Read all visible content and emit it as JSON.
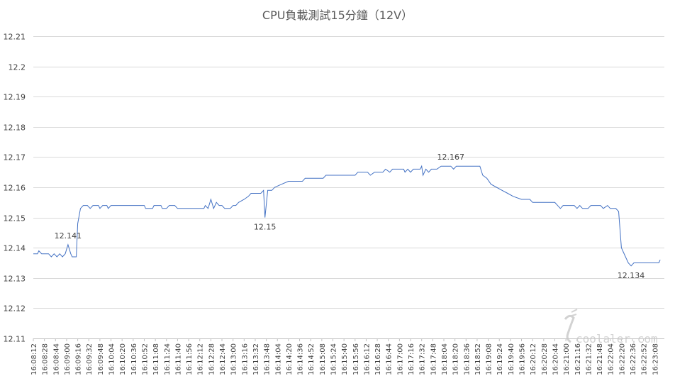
{
  "chart_data": {
    "type": "line",
    "title": "CPU負載測試15分鐘（12V）",
    "xlabel": "",
    "ylabel": "",
    "ylim": [
      12.11,
      12.21
    ],
    "yticks": [
      12.11,
      12.12,
      12.13,
      12.14,
      12.15,
      12.16,
      12.17,
      12.18,
      12.19,
      12.2,
      12.21
    ],
    "ytick_labels": [
      "12.11",
      "12.12",
      "12.13",
      "12.14",
      "12.15",
      "12.16",
      "12.17",
      "12.18",
      "12.19",
      "12.2",
      "12.21"
    ],
    "grid": true,
    "legend": "none",
    "categories": [
      "16:08:12",
      "16:08:28",
      "16:08:44",
      "16:09:00",
      "16:09:16",
      "16:09:32",
      "16:09:48",
      "16:10:04",
      "16:10:20",
      "16:10:36",
      "16:10:52",
      "16:11:08",
      "16:11:24",
      "16:11:40",
      "16:11:56",
      "16:12:12",
      "16:12:28",
      "16:12:44",
      "16:13:00",
      "16:13:16",
      "16:13:32",
      "16:13:48",
      "16:14:04",
      "16:14:20",
      "16:14:36",
      "16:14:52",
      "16:15:08",
      "16:15:24",
      "16:15:40",
      "16:15:56",
      "16:16:12",
      "16:16:28",
      "16:16:44",
      "16:17:00",
      "16:17:16",
      "16:17:32",
      "16:17:48",
      "16:18:04",
      "16:18:20",
      "16:18:36",
      "16:18:52",
      "16:19:08",
      "16:19:24",
      "16:19:40",
      "16:19:56",
      "16:20:12",
      "16:20:28",
      "16:20:44",
      "16:21:00",
      "16:21:16",
      "16:21:32",
      "16:21:48",
      "16:22:04",
      "16:22:20",
      "16:22:36",
      "16:22:52",
      "16:23:08"
    ],
    "series": [
      {
        "color": "#4472c4",
        "points": [
          [
            "16:08:12",
            12.138
          ],
          [
            "16:08:18",
            12.138
          ],
          [
            "16:08:20",
            12.139
          ],
          [
            "16:08:24",
            12.138
          ],
          [
            "16:08:34",
            12.138
          ],
          [
            "16:08:38",
            12.137
          ],
          [
            "16:08:42",
            12.138
          ],
          [
            "16:08:46",
            12.137
          ],
          [
            "16:08:50",
            12.138
          ],
          [
            "16:08:54",
            12.137
          ],
          [
            "16:08:58",
            12.138
          ],
          [
            "16:09:02",
            12.141
          ],
          [
            "16:09:06",
            12.138
          ],
          [
            "16:09:08",
            12.137
          ],
          [
            "16:09:14",
            12.137
          ],
          [
            "16:09:16",
            12.148
          ],
          [
            "16:09:20",
            12.153
          ],
          [
            "16:09:24",
            12.154
          ],
          [
            "16:09:30",
            12.154
          ],
          [
            "16:09:34",
            12.153
          ],
          [
            "16:09:38",
            12.154
          ],
          [
            "16:09:46",
            12.154
          ],
          [
            "16:09:48",
            12.153
          ],
          [
            "16:09:52",
            12.154
          ],
          [
            "16:09:58",
            12.154
          ],
          [
            "16:10:00",
            12.153
          ],
          [
            "16:10:04",
            12.154
          ],
          [
            "16:10:52",
            12.154
          ],
          [
            "16:10:54",
            12.153
          ],
          [
            "16:11:04",
            12.153
          ],
          [
            "16:11:06",
            12.154
          ],
          [
            "16:11:16",
            12.154
          ],
          [
            "16:11:18",
            12.153
          ],
          [
            "16:11:24",
            12.153
          ],
          [
            "16:11:28",
            12.154
          ],
          [
            "16:11:36",
            12.154
          ],
          [
            "16:11:40",
            12.153
          ],
          [
            "16:12:18",
            12.153
          ],
          [
            "16:12:20",
            12.154
          ],
          [
            "16:12:24",
            12.153
          ],
          [
            "16:12:28",
            12.156
          ],
          [
            "16:12:32",
            12.153
          ],
          [
            "16:12:36",
            12.155
          ],
          [
            "16:12:40",
            12.154
          ],
          [
            "16:12:44",
            12.154
          ],
          [
            "16:12:48",
            12.153
          ],
          [
            "16:12:56",
            12.153
          ],
          [
            "16:13:00",
            12.154
          ],
          [
            "16:13:04",
            12.154
          ],
          [
            "16:13:08",
            12.155
          ],
          [
            "16:13:16",
            12.156
          ],
          [
            "16:13:22",
            12.157
          ],
          [
            "16:13:26",
            12.158
          ],
          [
            "16:13:40",
            12.158
          ],
          [
            "16:13:44",
            12.159
          ],
          [
            "16:13:46",
            12.15
          ],
          [
            "16:13:50",
            12.159
          ],
          [
            "16:13:56",
            12.159
          ],
          [
            "16:14:00",
            12.16
          ],
          [
            "16:14:10",
            12.161
          ],
          [
            "16:14:20",
            12.162
          ],
          [
            "16:14:40",
            12.162
          ],
          [
            "16:14:44",
            12.163
          ],
          [
            "16:15:10",
            12.163
          ],
          [
            "16:15:14",
            12.164
          ],
          [
            "16:15:56",
            12.164
          ],
          [
            "16:16:00",
            12.165
          ],
          [
            "16:16:14",
            12.165
          ],
          [
            "16:16:18",
            12.164
          ],
          [
            "16:16:24",
            12.165
          ],
          [
            "16:16:36",
            12.165
          ],
          [
            "16:16:40",
            12.166
          ],
          [
            "16:16:46",
            12.165
          ],
          [
            "16:16:50",
            12.166
          ],
          [
            "16:17:06",
            12.166
          ],
          [
            "16:17:08",
            12.165
          ],
          [
            "16:17:12",
            12.166
          ],
          [
            "16:17:16",
            12.165
          ],
          [
            "16:17:20",
            12.166
          ],
          [
            "16:17:30",
            12.166
          ],
          [
            "16:17:32",
            12.167
          ],
          [
            "16:17:34",
            12.164
          ],
          [
            "16:17:38",
            12.166
          ],
          [
            "16:17:42",
            12.165
          ],
          [
            "16:17:46",
            12.166
          ],
          [
            "16:17:54",
            12.166
          ],
          [
            "16:18:00",
            12.167
          ],
          [
            "16:18:14",
            12.167
          ],
          [
            "16:18:18",
            12.166
          ],
          [
            "16:18:22",
            12.167
          ],
          [
            "16:18:56",
            12.167
          ],
          [
            "16:19:00",
            12.164
          ],
          [
            "16:19:06",
            12.163
          ],
          [
            "16:19:12",
            12.161
          ],
          [
            "16:19:20",
            12.16
          ],
          [
            "16:19:28",
            12.159
          ],
          [
            "16:19:36",
            12.158
          ],
          [
            "16:19:44",
            12.157
          ],
          [
            "16:19:56",
            12.156
          ],
          [
            "16:20:08",
            12.156
          ],
          [
            "16:20:12",
            12.155
          ],
          [
            "16:20:44",
            12.155
          ],
          [
            "16:20:48",
            12.154
          ],
          [
            "16:20:52",
            12.153
          ],
          [
            "16:20:56",
            12.154
          ],
          [
            "16:21:12",
            12.154
          ],
          [
            "16:21:16",
            12.153
          ],
          [
            "16:21:20",
            12.154
          ],
          [
            "16:21:24",
            12.153
          ],
          [
            "16:21:32",
            12.153
          ],
          [
            "16:21:36",
            12.154
          ],
          [
            "16:21:50",
            12.154
          ],
          [
            "16:21:54",
            12.153
          ],
          [
            "16:22:00",
            12.154
          ],
          [
            "16:22:04",
            12.153
          ],
          [
            "16:22:12",
            12.153
          ],
          [
            "16:22:16",
            12.152
          ],
          [
            "16:22:20",
            12.14
          ],
          [
            "16:22:26",
            12.137
          ],
          [
            "16:22:30",
            12.135
          ],
          [
            "16:22:34",
            12.134
          ],
          [
            "16:22:38",
            12.135
          ],
          [
            "16:23:14",
            12.135
          ],
          [
            "16:23:16",
            12.136
          ]
        ]
      }
    ],
    "data_labels": [
      {
        "x": "16:09:02",
        "y": 12.141,
        "text": "12.141",
        "position": "above"
      },
      {
        "x": "16:13:46",
        "y": 12.15,
        "text": "12.15",
        "position": "below"
      },
      {
        "x": "16:18:14",
        "y": 12.167,
        "text": "12.167",
        "position": "above"
      },
      {
        "x": "16:22:34",
        "y": 12.134,
        "text": "12.134",
        "position": "below"
      }
    ]
  },
  "watermark": {
    "text": "coolaler.com",
    "icon": "coolaler-logo-icon"
  }
}
